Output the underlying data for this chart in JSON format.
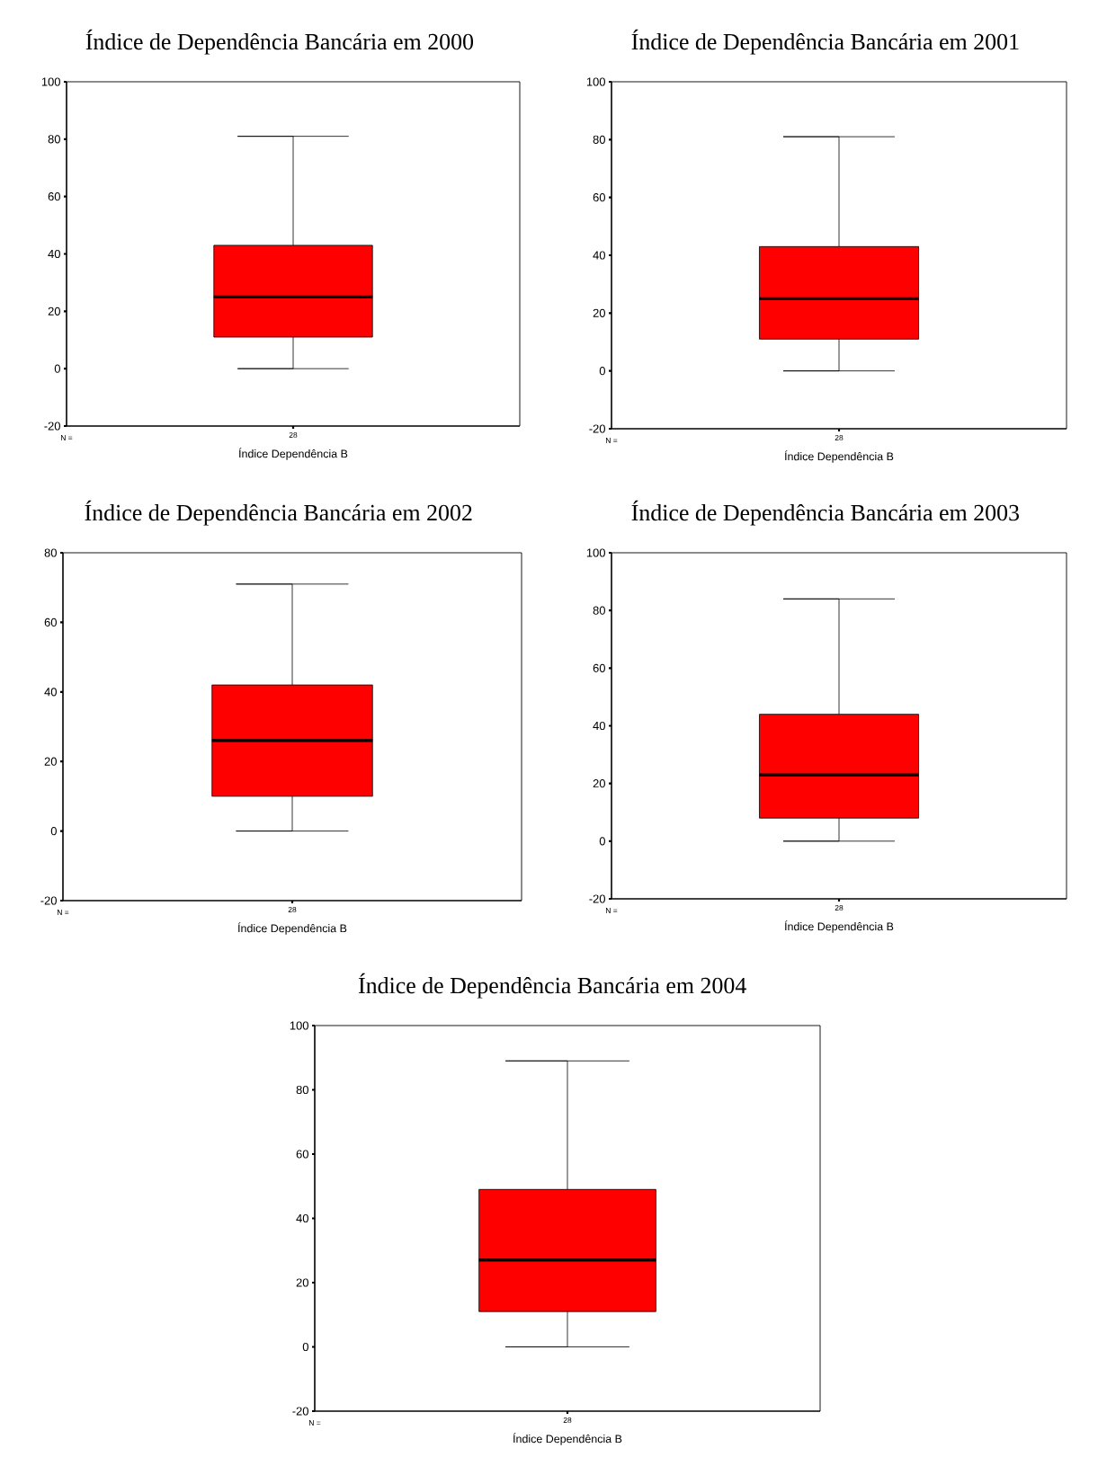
{
  "chart_data": [
    {
      "type": "box",
      "title": "Índice de Dependência Bancária em 2000",
      "xlabel": "Índice Dependência B",
      "categories": [
        "28"
      ],
      "series": [
        {
          "color": "#ff0000",
          "boxes": [
            {
              "low": 0,
              "q1": 11,
              "median": 25,
              "q3": 43,
              "high": 81
            }
          ]
        }
      ],
      "ylim": [
        -20,
        100
      ],
      "yticks": [
        -20,
        0,
        20,
        40,
        60,
        80,
        100
      ],
      "annotations": [
        "N ="
      ]
    },
    {
      "type": "box",
      "title": "Índice de Dependência Bancária em 2001",
      "xlabel": "Índice Dependência B",
      "categories": [
        "28"
      ],
      "series": [
        {
          "color": "#ff0000",
          "boxes": [
            {
              "low": 0,
              "q1": 11,
              "median": 25,
              "q3": 43,
              "high": 81
            }
          ]
        }
      ],
      "ylim": [
        -20,
        100
      ],
      "yticks": [
        -20,
        0,
        20,
        40,
        60,
        80,
        100
      ],
      "annotations": [
        "N ="
      ]
    },
    {
      "type": "box",
      "title": "Índice de Dependência Bancária em 2002",
      "xlabel": "Índice Dependência B",
      "categories": [
        "28"
      ],
      "series": [
        {
          "color": "#ff0000",
          "boxes": [
            {
              "low": 0,
              "q1": 10,
              "median": 26,
              "q3": 42,
              "high": 71
            }
          ]
        }
      ],
      "ylim": [
        -20,
        80
      ],
      "yticks": [
        -20,
        0,
        20,
        40,
        60,
        80
      ],
      "annotations": [
        "N ="
      ]
    },
    {
      "type": "box",
      "title": "Índice de Dependência Bancária em 2003",
      "xlabel": "Índice Dependência B",
      "categories": [
        "28"
      ],
      "series": [
        {
          "color": "#ff0000",
          "boxes": [
            {
              "low": 0,
              "q1": 8,
              "median": 23,
              "q3": 44,
              "high": 84
            }
          ]
        }
      ],
      "ylim": [
        -20,
        100
      ],
      "yticks": [
        -20,
        0,
        20,
        40,
        60,
        80,
        100
      ],
      "annotations": [
        "N ="
      ]
    },
    {
      "type": "box",
      "title": "Índice de Dependência Bancária em 2004",
      "xlabel": "Índice Dependência B",
      "categories": [
        "28"
      ],
      "series": [
        {
          "color": "#ff0000",
          "boxes": [
            {
              "low": 0,
              "q1": 11,
              "median": 27,
              "q3": 49,
              "high": 89
            }
          ]
        }
      ],
      "ylim": [
        -20,
        100
      ],
      "yticks": [
        -20,
        0,
        20,
        40,
        60,
        80,
        100
      ],
      "annotations": [
        "N ="
      ]
    }
  ]
}
